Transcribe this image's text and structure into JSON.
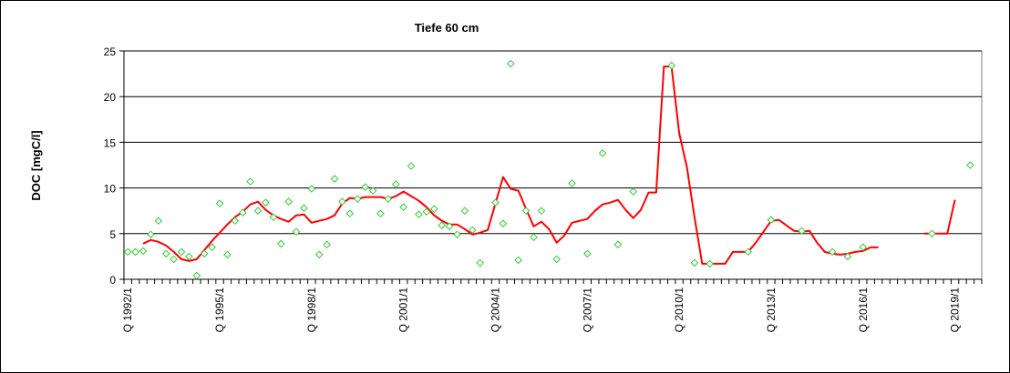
{
  "chart_data": {
    "type": "line",
    "title": "Tiefe  60 cm",
    "xlabel": "",
    "ylabel": "DOC [mgC/l]",
    "ylim": [
      0,
      25
    ],
    "yticks": [
      0,
      5,
      10,
      15,
      20,
      25
    ],
    "grid": "horizontal",
    "xaxis": {
      "first_quarter": "1992/1",
      "last_quarter": "2019/4",
      "tick_labels": [
        "Q 1992/1",
        "Q 1995/1",
        "Q 1998/1",
        "Q 2001/1",
        "Q 2004/1",
        "Q 2007/1",
        "Q 2010/1",
        "Q 2013/1",
        "Q 2016/1",
        "Q 2019/1"
      ]
    },
    "colors": {
      "line": "#ff0000",
      "markers": "#33cc33",
      "grid": "#000000"
    },
    "series": [
      {
        "type": "scatter",
        "marker": "diamond-open",
        "points": [
          [
            "1992/1",
            3.0
          ],
          [
            "1992/2",
            3.0
          ],
          [
            "1992/3",
            3.1
          ],
          [
            "1992/4",
            4.9
          ],
          [
            "1993/1",
            6.4
          ],
          [
            "1993/2",
            2.8
          ],
          [
            "1993/3",
            2.2
          ],
          [
            "1993/4",
            3.0
          ],
          [
            "1994/1",
            2.5
          ],
          [
            "1994/2",
            0.4
          ],
          [
            "1994/3",
            2.8
          ],
          [
            "1994/4",
            3.5
          ],
          [
            "1995/1",
            8.3
          ],
          [
            "1995/2",
            2.7
          ],
          [
            "1995/3",
            6.4
          ],
          [
            "1995/4",
            7.3
          ],
          [
            "1996/1",
            10.7
          ],
          [
            "1996/2",
            7.5
          ],
          [
            "1996/3",
            8.4
          ],
          [
            "1996/4",
            6.8
          ],
          [
            "1997/1",
            3.9
          ],
          [
            "1997/2",
            8.5
          ],
          [
            "1997/3",
            5.2
          ],
          [
            "1997/4",
            7.8
          ],
          [
            "1998/1",
            9.9
          ],
          [
            "1998/2",
            2.7
          ],
          [
            "1998/3",
            3.8
          ],
          [
            "1998/4",
            11.0
          ],
          [
            "1999/1",
            8.5
          ],
          [
            "1999/2",
            7.2
          ],
          [
            "1999/3",
            8.8
          ],
          [
            "1999/4",
            10.1
          ],
          [
            "2000/1",
            9.7
          ],
          [
            "2000/2",
            7.2
          ],
          [
            "2000/3",
            8.8
          ],
          [
            "2000/4",
            10.4
          ],
          [
            "2001/1",
            7.9
          ],
          [
            "2001/2",
            12.4
          ],
          [
            "2001/3",
            7.1
          ],
          [
            "2001/4",
            7.4
          ],
          [
            "2002/1",
            7.7
          ],
          [
            "2002/2",
            5.9
          ],
          [
            "2002/3",
            5.8
          ],
          [
            "2002/4",
            4.9
          ],
          [
            "2003/1",
            7.5
          ],
          [
            "2003/2",
            5.4
          ],
          [
            "2003/3",
            1.8
          ],
          [
            "2004/1",
            8.4
          ],
          [
            "2004/2",
            6.1
          ],
          [
            "2004/3",
            23.6
          ],
          [
            "2004/4",
            2.1
          ],
          [
            "2005/1",
            7.5
          ],
          [
            "2005/2",
            4.6
          ],
          [
            "2005/3",
            7.5
          ],
          [
            "2006/1",
            2.2
          ],
          [
            "2006/3",
            10.5
          ],
          [
            "2007/1",
            2.8
          ],
          [
            "2007/3",
            13.8
          ],
          [
            "2008/1",
            3.8
          ],
          [
            "2008/3",
            9.6
          ],
          [
            "2009/4",
            23.4
          ],
          [
            "2010/3",
            1.8
          ],
          [
            "2011/1",
            1.7
          ],
          [
            "2012/2",
            3.0
          ],
          [
            "2013/1",
            6.5
          ],
          [
            "2014/1",
            5.3
          ],
          [
            "2015/1",
            3.0
          ],
          [
            "2015/3",
            2.5
          ],
          [
            "2016/1",
            3.5
          ],
          [
            "2018/2",
            5.0
          ],
          [
            "2019/3",
            12.5
          ]
        ]
      },
      {
        "type": "line",
        "name": "",
        "segments": [
          [
            [
              "1992/3",
              3.9
            ],
            [
              "1992/4",
              4.3
            ],
            [
              "1993/1",
              4.1
            ],
            [
              "1993/2",
              3.7
            ],
            [
              "1993/3",
              3.0
            ],
            [
              "1993/4",
              2.2
            ],
            [
              "1994/1",
              2.0
            ],
            [
              "1994/2",
              2.2
            ],
            [
              "1994/3",
              3.2
            ],
            [
              "1994/4",
              4.2
            ],
            [
              "1995/1",
              5.1
            ],
            [
              "1995/2",
              6.0
            ],
            [
              "1995/3",
              6.8
            ],
            [
              "1995/4",
              7.4
            ],
            [
              "1996/1",
              8.2
            ],
            [
              "1996/2",
              8.5
            ],
            [
              "1996/3",
              7.6
            ],
            [
              "1996/4",
              7.0
            ],
            [
              "1997/1",
              6.6
            ],
            [
              "1997/2",
              6.3
            ],
            [
              "1997/3",
              7.0
            ],
            [
              "1997/4",
              7.1
            ],
            [
              "1998/1",
              6.2
            ],
            [
              "1998/2",
              6.4
            ],
            [
              "1998/3",
              6.6
            ],
            [
              "1998/4",
              7.0
            ],
            [
              "1999/1",
              8.3
            ],
            [
              "1999/2",
              8.9
            ],
            [
              "1999/3",
              8.8
            ],
            [
              "1999/4",
              9.0
            ],
            [
              "2000/1",
              9.0
            ],
            [
              "2000/2",
              9.0
            ],
            [
              "2000/3",
              8.8
            ],
            [
              "2000/4",
              9.1
            ],
            [
              "2001/1",
              9.6
            ],
            [
              "2001/2",
              9.1
            ],
            [
              "2001/3",
              8.6
            ],
            [
              "2001/4",
              7.9
            ],
            [
              "2002/1",
              7.0
            ],
            [
              "2002/2",
              6.4
            ],
            [
              "2002/3",
              6.0
            ],
            [
              "2002/4",
              6.0
            ],
            [
              "2003/1",
              5.5
            ],
            [
              "2003/2",
              4.9
            ],
            [
              "2003/3",
              5.1
            ],
            [
              "2003/4",
              5.4
            ],
            [
              "2004/1",
              8.3
            ],
            [
              "2004/2",
              11.2
            ],
            [
              "2004/3",
              9.9
            ],
            [
              "2004/4",
              9.7
            ],
            [
              "2005/1",
              7.7
            ],
            [
              "2005/2",
              5.8
            ],
            [
              "2005/3",
              6.3
            ],
            [
              "2005/4",
              5.5
            ],
            [
              "2006/1",
              4.0
            ],
            [
              "2006/2",
              4.8
            ],
            [
              "2006/3",
              6.2
            ],
            [
              "2006/4",
              6.4
            ],
            [
              "2007/1",
              6.6
            ],
            [
              "2007/2",
              7.5
            ],
            [
              "2007/3",
              8.2
            ],
            [
              "2007/4",
              8.4
            ],
            [
              "2008/1",
              8.7
            ],
            [
              "2008/2",
              7.6
            ],
            [
              "2008/3",
              6.7
            ],
            [
              "2008/4",
              7.6
            ],
            [
              "2009/1",
              9.5
            ],
            [
              "2009/2",
              9.5
            ],
            [
              "2009/3",
              23.3
            ],
            [
              "2009/4",
              23.3
            ],
            [
              "2010/1",
              16.0
            ],
            [
              "2010/2",
              12.3
            ],
            [
              "2010/3",
              6.8
            ],
            [
              "2010/4",
              1.7
            ],
            [
              "2011/1",
              1.7
            ],
            [
              "2011/2",
              1.7
            ],
            [
              "2011/3",
              1.7
            ],
            [
              "2011/4",
              3.0
            ],
            [
              "2012/1",
              3.0
            ],
            [
              "2012/2",
              3.0
            ],
            [
              "2012/3",
              4.0
            ],
            [
              "2012/4",
              5.2
            ],
            [
              "2013/1",
              6.4
            ],
            [
              "2013/2",
              6.5
            ],
            [
              "2013/3",
              5.9
            ],
            [
              "2013/4",
              5.3
            ],
            [
              "2014/1",
              5.2
            ],
            [
              "2014/2",
              5.3
            ],
            [
              "2014/3",
              4.0
            ],
            [
              "2014/4",
              3.0
            ],
            [
              "2015/1",
              2.8
            ],
            [
              "2015/2",
              2.7
            ],
            [
              "2015/3",
              2.8
            ],
            [
              "2015/4",
              3.0
            ],
            [
              "2016/1",
              3.1
            ],
            [
              "2016/2",
              3.5
            ],
            [
              "2016/3",
              3.5
            ]
          ],
          [
            [
              "2018/1",
              5.0
            ],
            [
              "2018/2",
              5.0
            ],
            [
              "2018/3",
              5.0
            ],
            [
              "2018/4",
              5.0
            ],
            [
              "2019/1",
              8.7
            ]
          ]
        ]
      }
    ]
  }
}
